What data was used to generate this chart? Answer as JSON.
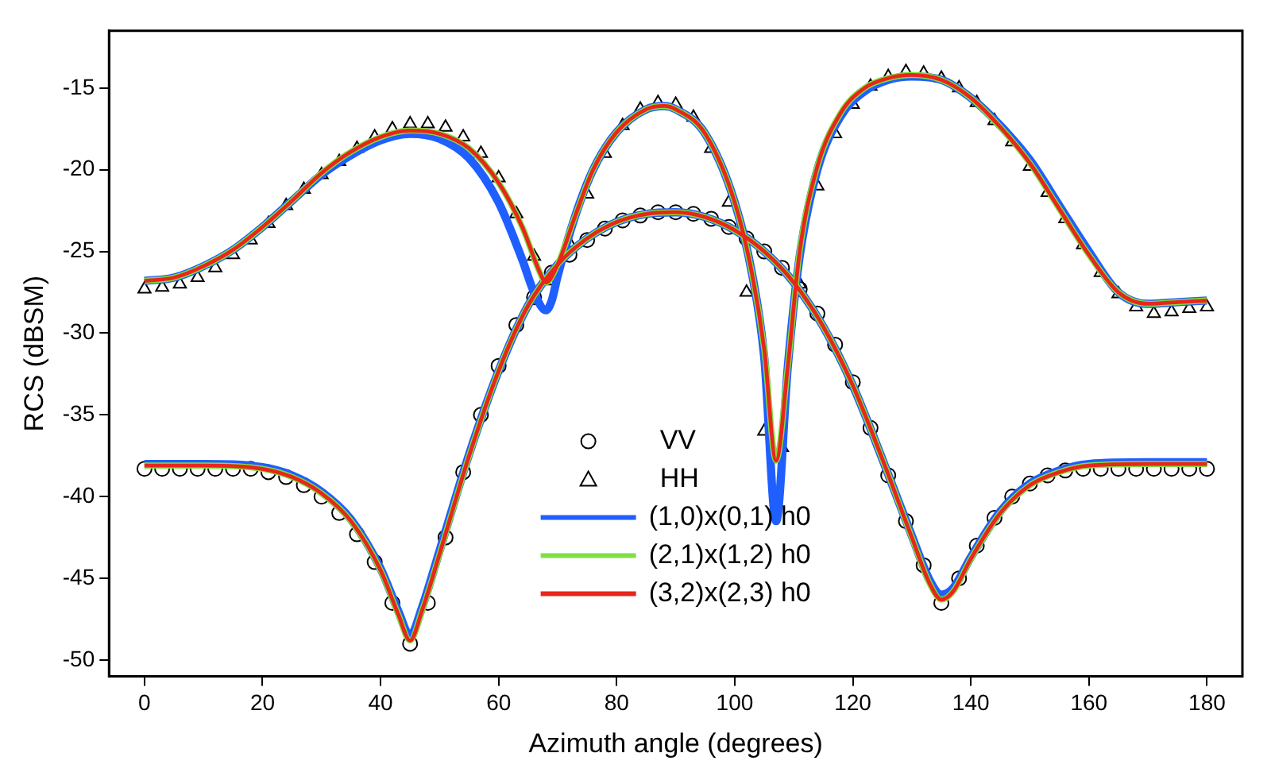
{
  "chart_data": {
    "type": "line",
    "xlabel": "Azimuth angle (degrees)",
    "ylabel": "RCS (dBSM)",
    "xlim": [
      -6,
      186
    ],
    "xticks": [
      0,
      20,
      40,
      60,
      80,
      100,
      120,
      140,
      160,
      180
    ],
    "ylim": [
      -51,
      -11.5
    ],
    "yticks": [
      -50,
      -45,
      -40,
      -35,
      -30,
      -25,
      -20,
      -15
    ],
    "grid": false,
    "legend": "bottom",
    "line_style": "solid",
    "series": [
      {
        "type": "scatter",
        "name": "VV",
        "color": "#000000",
        "marker": "circle",
        "x": [
          0,
          3,
          6,
          9,
          12,
          15,
          18,
          21,
          24,
          27,
          30,
          33,
          36,
          39,
          42,
          45,
          48,
          51,
          54,
          57,
          60,
          63,
          66,
          69,
          72,
          75,
          78,
          81,
          84,
          87,
          90,
          93,
          96,
          99,
          102,
          105,
          108,
          111,
          114,
          117,
          120,
          123,
          126,
          129,
          132,
          135,
          138,
          141,
          144,
          147,
          150,
          153,
          156,
          159,
          162,
          165,
          168,
          171,
          174,
          177,
          180
        ],
        "values": [
          -38.3,
          -38.3,
          -38.3,
          -38.3,
          -38.3,
          -38.3,
          -38.3,
          -38.5,
          -38.8,
          -39.3,
          -40.0,
          -41.0,
          -42.3,
          -44.0,
          -46.5,
          -49.0,
          -46.5,
          -42.5,
          -38.5,
          -35.0,
          -32.0,
          -29.5,
          -27.8,
          -26.3,
          -25.2,
          -24.3,
          -23.6,
          -23.1,
          -22.8,
          -22.6,
          -22.6,
          -22.7,
          -23.0,
          -23.5,
          -24.2,
          -25.0,
          -26.0,
          -27.3,
          -28.8,
          -30.7,
          -33.0,
          -35.8,
          -38.7,
          -41.5,
          -44.2,
          -46.5,
          -45.0,
          -43.0,
          -41.3,
          -40.0,
          -39.2,
          -38.7,
          -38.4,
          -38.3,
          -38.3,
          -38.3,
          -38.3,
          -38.3,
          -38.3,
          -38.3,
          -38.3
        ]
      },
      {
        "type": "scatter",
        "name": "HH",
        "color": "#000000",
        "marker": "triangle",
        "x": [
          0,
          3,
          6,
          9,
          12,
          15,
          18,
          21,
          24,
          27,
          30,
          33,
          36,
          39,
          42,
          45,
          48,
          51,
          54,
          57,
          60,
          63,
          66,
          69,
          72,
          75,
          78,
          81,
          84,
          87,
          90,
          93,
          96,
          99,
          102,
          105,
          108,
          111,
          114,
          117,
          120,
          123,
          126,
          129,
          132,
          135,
          138,
          141,
          144,
          147,
          150,
          153,
          156,
          159,
          162,
          165,
          168,
          171,
          174,
          177,
          180
        ],
        "values": [
          -27.3,
          -27.2,
          -27.0,
          -26.6,
          -26.0,
          -25.2,
          -24.3,
          -23.3,
          -22.2,
          -21.2,
          -20.3,
          -19.5,
          -18.7,
          -18.0,
          -17.5,
          -17.2,
          -17.2,
          -17.4,
          -18.0,
          -19.0,
          -20.5,
          -22.7,
          -25.3,
          -26.8,
          -24.5,
          -21.5,
          -19.0,
          -17.3,
          -16.3,
          -15.9,
          -16.0,
          -16.8,
          -18.7,
          -22.0,
          -27.5,
          -36.0,
          -37.0,
          -27.0,
          -21.0,
          -17.8,
          -16.0,
          -14.9,
          -14.3,
          -14.0,
          -14.1,
          -14.4,
          -15.0,
          -15.9,
          -17.0,
          -18.3,
          -19.8,
          -21.4,
          -23.0,
          -24.6,
          -26.3,
          -27.6,
          -28.4,
          -28.8,
          -28.7,
          -28.5,
          -28.4
        ]
      },
      {
        "type": "line",
        "name": "(1,0)x(0,1) h0",
        "color": "#1f5fff",
        "x": [
          0,
          10,
          20,
          25,
          30,
          35,
          40,
          43,
          45,
          47,
          50,
          55,
          60,
          65,
          70,
          75,
          80,
          85,
          90,
          95,
          100,
          105,
          110,
          115,
          120,
          125,
          130,
          133,
          135,
          137,
          140,
          145,
          150,
          155,
          160,
          170,
          180
        ],
        "values": [
          -38.0,
          -38.0,
          -38.2,
          -38.7,
          -39.7,
          -41.4,
          -44.4,
          -47.0,
          -48.5,
          -46.8,
          -43.3,
          -37.4,
          -32.3,
          -28.3,
          -25.8,
          -24.2,
          -23.2,
          -22.7,
          -22.6,
          -22.9,
          -23.7,
          -25.0,
          -26.9,
          -29.6,
          -33.2,
          -37.7,
          -42.4,
          -45.1,
          -46.0,
          -45.6,
          -43.7,
          -40.9,
          -39.2,
          -38.4,
          -38.0,
          -37.9,
          -37.9
        ]
      },
      {
        "type": "line",
        "color": "#1f5fff",
        "x": [
          0,
          5,
          10,
          15,
          20,
          25,
          30,
          35,
          40,
          45,
          50,
          55,
          60,
          64,
          66,
          68,
          69,
          70,
          73,
          76,
          80,
          85,
          88,
          90,
          95,
          100,
          103,
          105,
          107,
          109,
          111,
          114,
          118,
          122,
          126,
          130,
          135,
          140,
          145,
          150,
          155,
          160,
          165,
          170,
          175,
          180
        ],
        "values": [
          -26.8,
          -26.6,
          -25.9,
          -24.9,
          -23.5,
          -21.9,
          -20.3,
          -19.1,
          -18.2,
          -17.8,
          -18.1,
          -19.3,
          -22.0,
          -25.5,
          -27.5,
          -28.6,
          -28.0,
          -26.5,
          -22.8,
          -20.0,
          -17.7,
          -16.3,
          -16.1,
          -16.3,
          -17.8,
          -22.0,
          -26.5,
          -31.5,
          -41.5,
          -32.0,
          -25.3,
          -20.0,
          -16.7,
          -15.2,
          -14.5,
          -14.3,
          -14.5,
          -15.6,
          -17.3,
          -19.4,
          -22.2,
          -25.0,
          -27.5,
          -28.2,
          -28.1,
          -28.0
        ]
      },
      {
        "type": "line",
        "name": "(2,1)x(1,2) h0",
        "color": "#7fe040",
        "x": [
          0,
          10,
          20,
          25,
          30,
          35,
          40,
          43,
          45,
          47,
          50,
          55,
          60,
          65,
          70,
          75,
          80,
          85,
          90,
          95,
          100,
          105,
          110,
          115,
          120,
          125,
          130,
          133,
          135,
          137,
          140,
          145,
          150,
          155,
          160,
          170,
          180
        ],
        "values": [
          -38.1,
          -38.1,
          -38.3,
          -38.8,
          -39.8,
          -41.5,
          -44.5,
          -47.2,
          -48.8,
          -47.0,
          -43.5,
          -37.5,
          -32.3,
          -28.3,
          -25.8,
          -24.2,
          -23.2,
          -22.7,
          -22.6,
          -22.9,
          -23.7,
          -25.0,
          -26.9,
          -29.6,
          -33.2,
          -37.7,
          -42.5,
          -45.3,
          -46.3,
          -45.8,
          -43.8,
          -41.0,
          -39.3,
          -38.5,
          -38.1,
          -38.0,
          -38.0
        ]
      },
      {
        "type": "line",
        "color": "#7fe040",
        "x": [
          0,
          5,
          10,
          15,
          20,
          25,
          30,
          35,
          40,
          45,
          50,
          55,
          60,
          64,
          67,
          68,
          70,
          73,
          76,
          80,
          85,
          88,
          90,
          95,
          100,
          103,
          105,
          107,
          109,
          111,
          114,
          118,
          122,
          126,
          130,
          135,
          140,
          145,
          150,
          155,
          160,
          165,
          170,
          175,
          180
        ],
        "values": [
          -26.8,
          -26.6,
          -25.9,
          -24.9,
          -23.5,
          -21.9,
          -20.2,
          -18.9,
          -18.0,
          -17.6,
          -17.8,
          -18.7,
          -20.8,
          -23.5,
          -26.3,
          -26.9,
          -25.8,
          -22.8,
          -20.0,
          -17.7,
          -16.3,
          -16.1,
          -16.3,
          -17.8,
          -22.0,
          -26.5,
          -31.0,
          -37.8,
          -32.0,
          -25.0,
          -19.8,
          -16.5,
          -15.0,
          -14.4,
          -14.2,
          -14.5,
          -15.6,
          -17.4,
          -19.6,
          -22.4,
          -25.2,
          -27.5,
          -28.2,
          -28.1,
          -28.0
        ]
      },
      {
        "type": "line",
        "name": "(3,2)x(2,3) h0",
        "color": "#e8261a",
        "x": [
          0,
          10,
          20,
          25,
          30,
          35,
          40,
          43,
          45,
          47,
          50,
          55,
          60,
          65,
          70,
          75,
          80,
          85,
          90,
          95,
          100,
          105,
          110,
          115,
          120,
          125,
          130,
          133,
          135,
          137,
          140,
          145,
          150,
          155,
          160,
          170,
          180
        ],
        "values": [
          -38.1,
          -38.1,
          -38.3,
          -38.8,
          -39.8,
          -41.5,
          -44.5,
          -47.2,
          -48.8,
          -47.0,
          -43.5,
          -37.5,
          -32.3,
          -28.3,
          -25.8,
          -24.2,
          -23.2,
          -22.7,
          -22.6,
          -22.9,
          -23.7,
          -25.0,
          -26.9,
          -29.6,
          -33.2,
          -37.7,
          -42.5,
          -45.3,
          -46.3,
          -45.8,
          -43.8,
          -41.0,
          -39.3,
          -38.5,
          -38.1,
          -38.0,
          -38.0
        ]
      },
      {
        "type": "line",
        "color": "#e8261a",
        "x": [
          0,
          5,
          10,
          15,
          20,
          25,
          30,
          35,
          40,
          45,
          50,
          55,
          60,
          64,
          67,
          68,
          70,
          73,
          76,
          80,
          85,
          88,
          90,
          95,
          100,
          103,
          105,
          107,
          109,
          111,
          114,
          118,
          122,
          126,
          130,
          135,
          140,
          145,
          150,
          155,
          160,
          165,
          170,
          175,
          180
        ],
        "values": [
          -26.8,
          -26.6,
          -25.9,
          -24.9,
          -23.5,
          -21.9,
          -20.2,
          -18.9,
          -18.0,
          -17.6,
          -17.8,
          -18.7,
          -20.8,
          -23.5,
          -26.3,
          -26.9,
          -25.8,
          -22.8,
          -20.0,
          -17.7,
          -16.3,
          -16.1,
          -16.3,
          -17.8,
          -22.0,
          -26.5,
          -31.0,
          -37.8,
          -32.0,
          -25.0,
          -19.8,
          -16.5,
          -15.0,
          -14.4,
          -14.2,
          -14.5,
          -15.6,
          -17.4,
          -19.6,
          -22.4,
          -25.2,
          -27.5,
          -28.2,
          -28.1,
          -28.0
        ]
      }
    ]
  }
}
